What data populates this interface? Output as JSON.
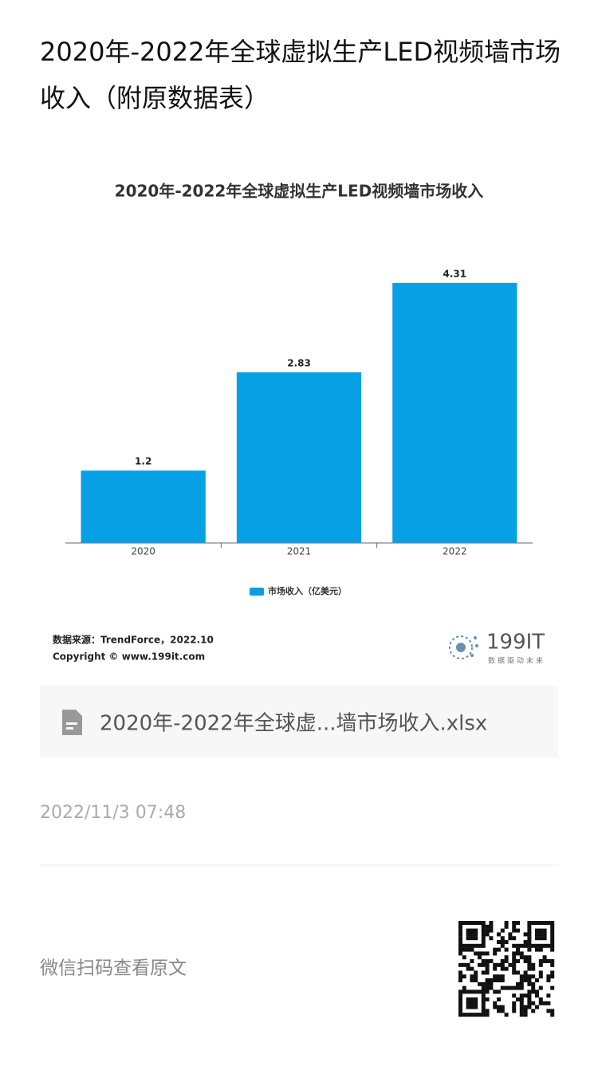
{
  "header": {
    "title": "2020年-2022年全球虚拟生产LED视频墙市场收入（附原数据表）"
  },
  "chart_data": {
    "type": "bar",
    "title": "2020年-2022年全球虚拟生产LED视频墙市场收入",
    "categories": [
      "2020",
      "2021",
      "2022"
    ],
    "series": [
      {
        "name": "市场收入（亿美元）",
        "color": "#07a0e4",
        "values": [
          1.2,
          2.83,
          4.31
        ]
      }
    ],
    "ylim": [
      0,
      4.5
    ]
  },
  "source": {
    "text": "数据来源：TrendForce，2022.10",
    "copyright": "Copyright © www.199it.com",
    "logo": "199IT",
    "slogan": "数据驱动未来"
  },
  "attachment": {
    "file": "2020年-2022年全球虚...墙市场收入.xlsx"
  },
  "post": {
    "date": "2022/11/3 07:48",
    "qr_hint": "微信扫码查看原文"
  }
}
